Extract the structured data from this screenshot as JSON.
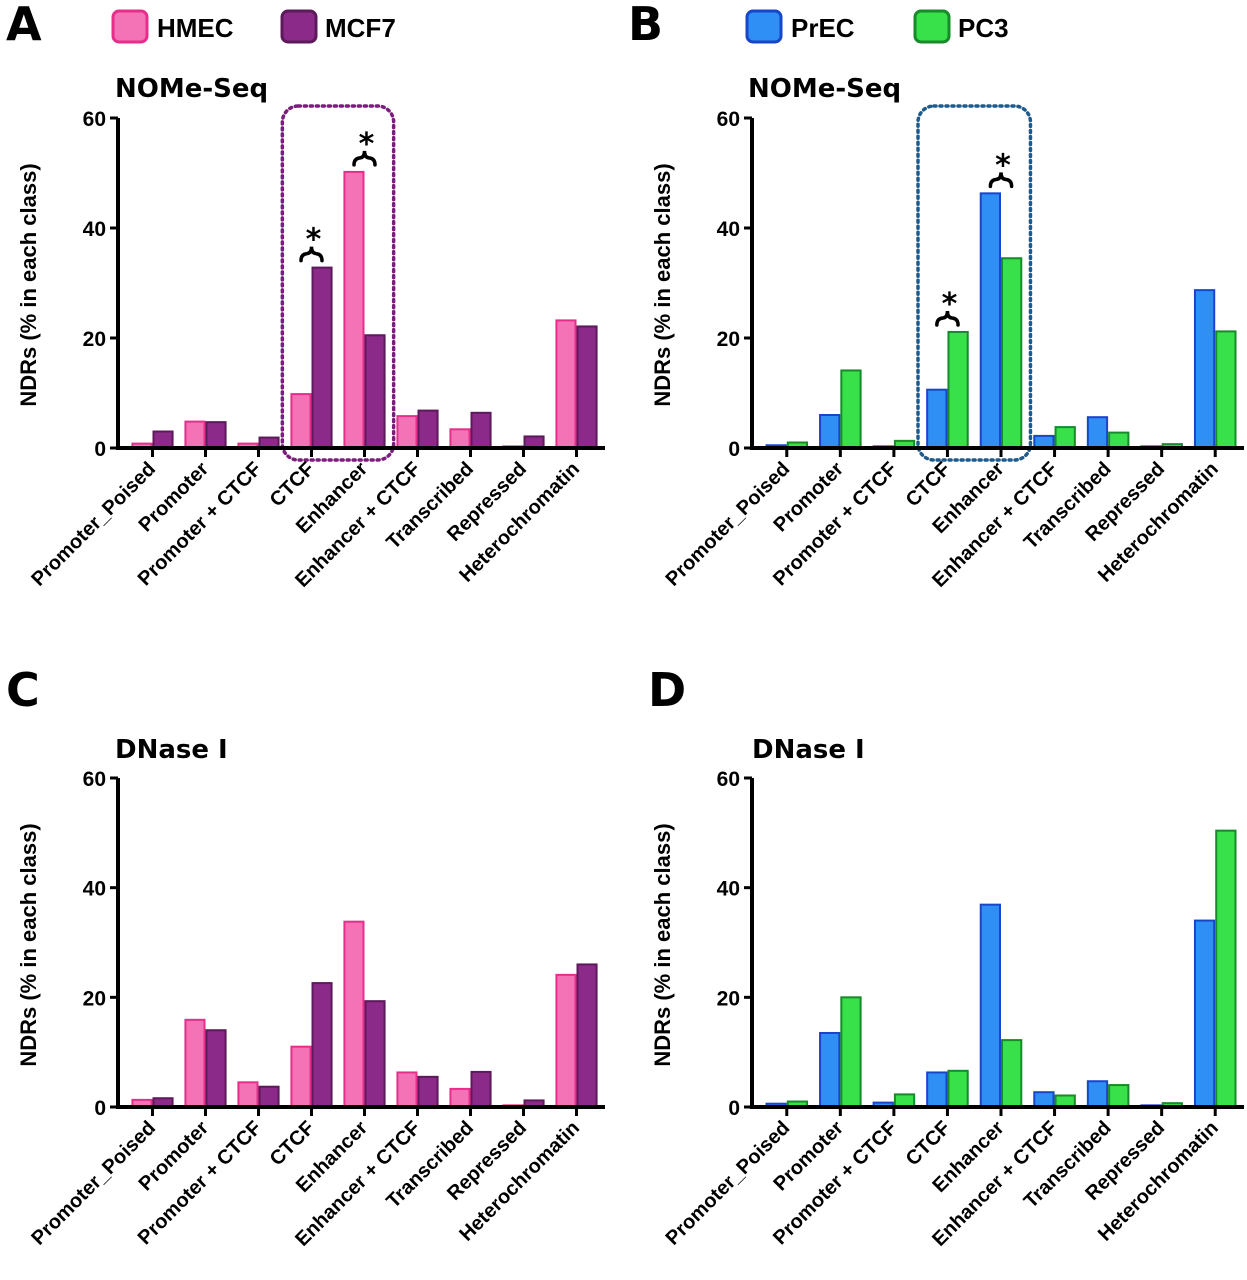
{
  "colors": {
    "HMEC": "#f472b6",
    "HMEC_edge": "#e62e8a",
    "MCF7": "#8b2a88",
    "MCF7_edge": "#5d1a5b",
    "PrEC": "#2f8ff5",
    "PrEC_edge": "#1846c9",
    "PC3": "#38e04a",
    "PC3_edge": "#178a2a",
    "box_A": "#7c1c7c",
    "box_B": "#1f5a8c"
  },
  "legends": [
    {
      "panel": "A",
      "items": [
        {
          "label": "HMEC",
          "color": "#f472b6"
        },
        {
          "label": "MCF7",
          "color": "#8b2a88"
        }
      ]
    },
    {
      "panel": "B",
      "items": [
        {
          "label": "PrEC",
          "color": "#2f8ff5"
        },
        {
          "label": "PC3",
          "color": "#38e04a"
        }
      ]
    }
  ],
  "chart_data": [
    {
      "panel": "A",
      "type": "bar",
      "title": "NOMe-Seq",
      "ylabel": "NDRs (% in each class)",
      "ylim": [
        0,
        60
      ],
      "yticks": [
        "0",
        "20",
        "40",
        "60"
      ],
      "categories": [
        "Promoter_Poised",
        "Promoter",
        "Promoter + CTCF",
        "CTCF",
        "Enhancer",
        "Enhancer + CTCF",
        "Transcribed",
        "Repressed",
        "Heterochromatin"
      ],
      "series": [
        {
          "name": "HMEC",
          "values": [
            0.8,
            4.8,
            0.8,
            9.8,
            50.2,
            5.8,
            3.4,
            0.3,
            23.2
          ]
        },
        {
          "name": "MCF7",
          "values": [
            3.0,
            4.7,
            1.9,
            32.8,
            20.5,
            6.8,
            6.4,
            2.1,
            22.1
          ]
        }
      ],
      "significance": [
        {
          "category": "CTCF",
          "label": "*"
        },
        {
          "category": "Enhancer",
          "label": "*"
        }
      ],
      "highlight_categories": [
        "CTCF",
        "Enhancer"
      ]
    },
    {
      "panel": "B",
      "type": "bar",
      "title": "NOMe-Seq",
      "ylabel": "NDRs (% in each class)",
      "ylim": [
        0,
        60
      ],
      "yticks": [
        "0",
        "20",
        "40",
        "60"
      ],
      "categories": [
        "Promoter_Poised",
        "Promoter",
        "Promoter + CTCF",
        "CTCF",
        "Enhancer",
        "Enhancer + CTCF",
        "Transcribed",
        "Repressed",
        "Heterochromatin"
      ],
      "series": [
        {
          "name": "PrEC",
          "values": [
            0.5,
            6.0,
            0.3,
            10.6,
            46.3,
            2.2,
            5.6,
            0.3,
            28.7
          ]
        },
        {
          "name": "PC3",
          "values": [
            1.0,
            14.1,
            1.3,
            21.1,
            34.5,
            3.8,
            2.8,
            0.7,
            21.2
          ]
        }
      ],
      "significance": [
        {
          "category": "CTCF",
          "label": "*"
        },
        {
          "category": "Enhancer",
          "label": "*"
        }
      ],
      "highlight_categories": [
        "CTCF",
        "Enhancer"
      ]
    },
    {
      "panel": "C",
      "type": "bar",
      "title": "DNase I",
      "ylabel": "NDRs (% in each class)",
      "ylim": [
        0,
        60
      ],
      "yticks": [
        "0",
        "20",
        "40",
        "60"
      ],
      "categories": [
        "Promoter_Poised",
        "Promoter",
        "Promoter + CTCF",
        "CTCF",
        "Enhancer",
        "Enhancer + CTCF",
        "Transcribed",
        "Repressed",
        "Heterochromatin"
      ],
      "series": [
        {
          "name": "HMEC",
          "values": [
            1.3,
            15.9,
            4.5,
            11.0,
            33.8,
            6.3,
            3.3,
            0.3,
            24.1
          ]
        },
        {
          "name": "MCF7",
          "values": [
            1.6,
            14.0,
            3.7,
            22.6,
            19.3,
            5.5,
            6.4,
            1.2,
            26.0
          ]
        }
      ],
      "significance": [],
      "highlight_categories": []
    },
    {
      "panel": "D",
      "type": "bar",
      "title": "DNase I",
      "ylabel": "NDRs (% in each class)",
      "ylim": [
        0,
        60
      ],
      "yticks": [
        "0",
        "20",
        "40",
        "60"
      ],
      "categories": [
        "Promoter_Poised",
        "Promoter",
        "Promoter + CTCF",
        "CTCF",
        "Enhancer",
        "Enhancer + CTCF",
        "Transcribed",
        "Repressed",
        "Heterochromatin"
      ],
      "series": [
        {
          "name": "PrEC",
          "values": [
            0.6,
            13.5,
            0.8,
            6.3,
            36.9,
            2.7,
            4.7,
            0.3,
            34.0
          ]
        },
        {
          "name": "PC3",
          "values": [
            1.0,
            20.0,
            2.3,
            6.6,
            12.2,
            2.1,
            4.0,
            0.7,
            50.4
          ]
        }
      ],
      "significance": [],
      "highlight_categories": []
    }
  ]
}
